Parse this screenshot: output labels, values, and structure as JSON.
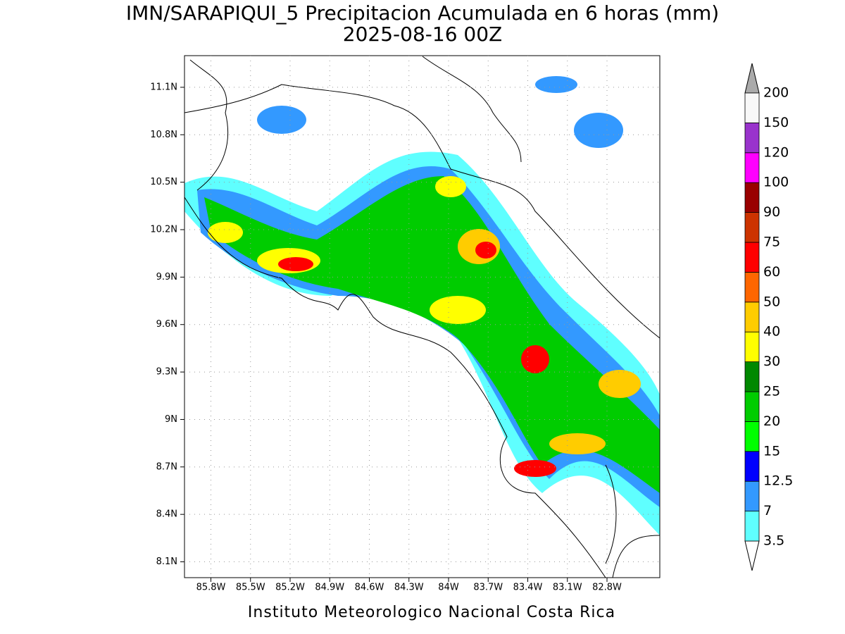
{
  "title": "IMN/SARAPIQUI_5 Precipitacion Acumulada en 6 horas (mm)",
  "subtitle": "2025-08-16 00Z",
  "footer": "Instituto Meteorologico Nacional Costa Rica",
  "map": {
    "xlim": [
      -86.0,
      -82.4
    ],
    "ylim": [
      8.0,
      11.3
    ],
    "xticks": [
      {
        "value": -85.8,
        "label": "85.8W"
      },
      {
        "value": -85.5,
        "label": "85.5W"
      },
      {
        "value": -85.2,
        "label": "85.2W"
      },
      {
        "value": -84.9,
        "label": "84.9W"
      },
      {
        "value": -84.6,
        "label": "84.6W"
      },
      {
        "value": -84.3,
        "label": "84.3W"
      },
      {
        "value": -84.0,
        "label": "84W"
      },
      {
        "value": -83.7,
        "label": "83.7W"
      },
      {
        "value": -83.4,
        "label": "83.4W"
      },
      {
        "value": -83.1,
        "label": "83.1W"
      },
      {
        "value": -82.8,
        "label": "82.8W"
      }
    ],
    "yticks": [
      {
        "value": 11.1,
        "label": "11.1N"
      },
      {
        "value": 10.8,
        "label": "10.8N"
      },
      {
        "value": 10.5,
        "label": "10.5N"
      },
      {
        "value": 10.2,
        "label": "10.2N"
      },
      {
        "value": 9.9,
        "label": "9.9N"
      },
      {
        "value": 9.6,
        "label": "9.6N"
      },
      {
        "value": 9.3,
        "label": "9.3N"
      },
      {
        "value": 9.0,
        "label": "9N"
      },
      {
        "value": 8.7,
        "label": "8.7N"
      },
      {
        "value": 8.4,
        "label": "8.4N"
      },
      {
        "value": 8.1,
        "label": "8.1N"
      }
    ],
    "grid": true
  },
  "colorbar": {
    "levels": [
      3.5,
      7,
      12.5,
      15,
      20,
      25,
      30,
      40,
      50,
      60,
      75,
      90,
      100,
      120,
      150,
      200
    ],
    "colors": [
      "#5fffff",
      "#3399ff",
      "#0000ff",
      "#00ff00",
      "#00cc00",
      "#008800",
      "#ffff00",
      "#ffcc00",
      "#ff6600",
      "#ff0000",
      "#cc3300",
      "#990000",
      "#ff00ff",
      "#9933cc",
      "#f8f8f8"
    ],
    "under_color": "#ffffff",
    "over_color": "#aaaaaa"
  }
}
